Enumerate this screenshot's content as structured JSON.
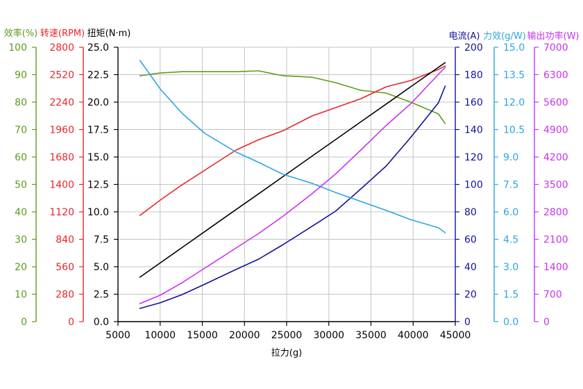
{
  "chart_data": {
    "type": "line",
    "xlabel": "拉力(g)",
    "xlim": [
      5000,
      45000
    ],
    "xticks": [
      "5000",
      "10000",
      "15000",
      "20000",
      "25000",
      "30000",
      "35000",
      "40000",
      "45000"
    ],
    "grid": true,
    "x": [
      7600,
      10000,
      12600,
      15300,
      19000,
      21700,
      24600,
      28000,
      30800,
      33800,
      36800,
      39700,
      43000,
      43800
    ],
    "series": [
      {
        "axis_label": "效率(%)",
        "axis_side": "left",
        "color": "#5a9c1a",
        "ylim": [
          0,
          100
        ],
        "yticks": [
          "0",
          "10",
          "20",
          "30",
          "40",
          "50",
          "60",
          "70",
          "80",
          "90",
          "100"
        ],
        "values": [
          89.6,
          90.6,
          91.1,
          91.1,
          91.1,
          91.4,
          89.6,
          89.1,
          87.1,
          84.3,
          83.3,
          80.0,
          75.7,
          72.2
        ]
      },
      {
        "axis_label": "转速(RPM)",
        "axis_side": "left",
        "color": "#e8242a",
        "ylim": [
          0,
          2800
        ],
        "yticks": [
          "0",
          "280",
          "560",
          "840",
          "1120",
          "1400",
          "1680",
          "1960",
          "2240",
          "2520",
          "2800"
        ],
        "values": [
          1084,
          1240,
          1396,
          1545,
          1751,
          1857,
          1949,
          2098,
          2183,
          2275,
          2396,
          2460,
          2573,
          2609
        ]
      },
      {
        "axis_label": "扭矩(N·m)",
        "axis_side": "left",
        "color": "#000000",
        "ylim": [
          0,
          25
        ],
        "yticks": [
          "0.0",
          "2.5",
          "5.0",
          "7.5",
          "10.0",
          "12.5",
          "15.0",
          "17.5",
          "20.0",
          "22.5",
          "25.0"
        ],
        "values": [
          4.05,
          5.35,
          6.75,
          8.21,
          10.21,
          11.66,
          13.23,
          15.07,
          16.58,
          18.2,
          19.82,
          21.39,
          23.17,
          23.6
        ]
      },
      {
        "axis_label": "电流(A)",
        "axis_side": "right",
        "color": "#10109a",
        "ylim": [
          0,
          200
        ],
        "yticks": [
          "0",
          "20",
          "40",
          "60",
          "80",
          "100",
          "120",
          "140",
          "160",
          "180",
          "200"
        ],
        "values": [
          9.6,
          13.7,
          19.7,
          27.3,
          38.0,
          45.6,
          56.2,
          69.4,
          80.5,
          96.7,
          113.4,
          134.2,
          159.5,
          171.6
        ]
      },
      {
        "axis_label": "力效(g/W)",
        "axis_side": "right",
        "color": "#2aa6e0",
        "ylim": [
          0,
          15
        ],
        "yticks": [
          "0.0",
          "1.5",
          "3.0",
          "4.5",
          "6.0",
          "7.5",
          "9.0",
          "10.5",
          "12.0",
          "13.5",
          "15.0"
        ],
        "values": [
          14.28,
          12.72,
          11.39,
          10.29,
          9.27,
          8.7,
          8.05,
          7.56,
          7.06,
          6.57,
          6.08,
          5.58,
          5.13,
          4.86
        ]
      },
      {
        "axis_label": "输出功率(W)",
        "axis_side": "right",
        "color": "#c832f0",
        "ylim": [
          0,
          7000
        ],
        "yticks": [
          "0",
          "700",
          "1400",
          "2100",
          "2800",
          "3500",
          "4200",
          "4900",
          "5600",
          "6300",
          "7000"
        ],
        "values": [
          461,
          673,
          992,
          1365,
          1878,
          2251,
          2694,
          3260,
          3765,
          4377,
          5005,
          5555,
          6309,
          6486
        ]
      }
    ]
  }
}
